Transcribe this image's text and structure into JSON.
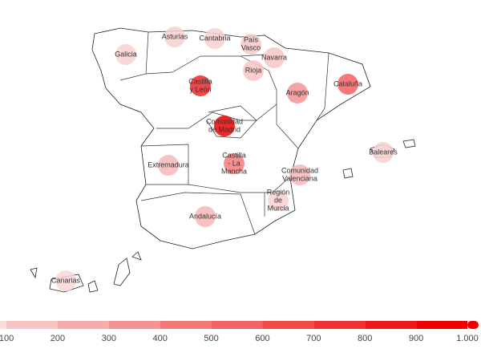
{
  "map": {
    "regions": [
      {
        "label": [
          "Galicia"
        ],
        "value": 150
      },
      {
        "label": [
          "Asturias"
        ],
        "value": 150
      },
      {
        "label": [
          "Cantabria"
        ],
        "value": 150
      },
      {
        "label": [
          "País",
          "Vasco"
        ],
        "value": 180
      },
      {
        "label": [
          "Navarra"
        ],
        "value": 200
      },
      {
        "label": [
          "Rioja"
        ],
        "value": 200
      },
      {
        "label": [
          "Castilla",
          "y León"
        ],
        "value": 850
      },
      {
        "label": [
          "Aragón"
        ],
        "value": 400
      },
      {
        "label": [
          "Cataluña"
        ],
        "value": 600
      },
      {
        "label": [
          "Comunidad",
          "de Madrid"
        ],
        "value": 1000
      },
      {
        "label": [
          "Extremadura"
        ],
        "value": 250
      },
      {
        "label": [
          "Castilla",
          "- La",
          "Mancha"
        ],
        "value": 500
      },
      {
        "label": [
          "Comunidad",
          "Valenciana"
        ],
        "value": 250
      },
      {
        "label": [
          "Región",
          "de",
          "Murcia"
        ],
        "value": 150
      },
      {
        "label": [
          "Andalucía"
        ],
        "value": 250
      },
      {
        "label": [
          "Baleares"
        ],
        "value": 150
      },
      {
        "label": [
          "Canarias"
        ],
        "value": 120
      }
    ],
    "colorlim": [
      100,
      1000
    ],
    "ticks": [
      100,
      200,
      300,
      400,
      500,
      600,
      700,
      800,
      900,
      {
        "value": 1000,
        "label": "1.000"
      }
    ],
    "color_low": "#f9dcdc",
    "color_high": "#ee0000"
  }
}
